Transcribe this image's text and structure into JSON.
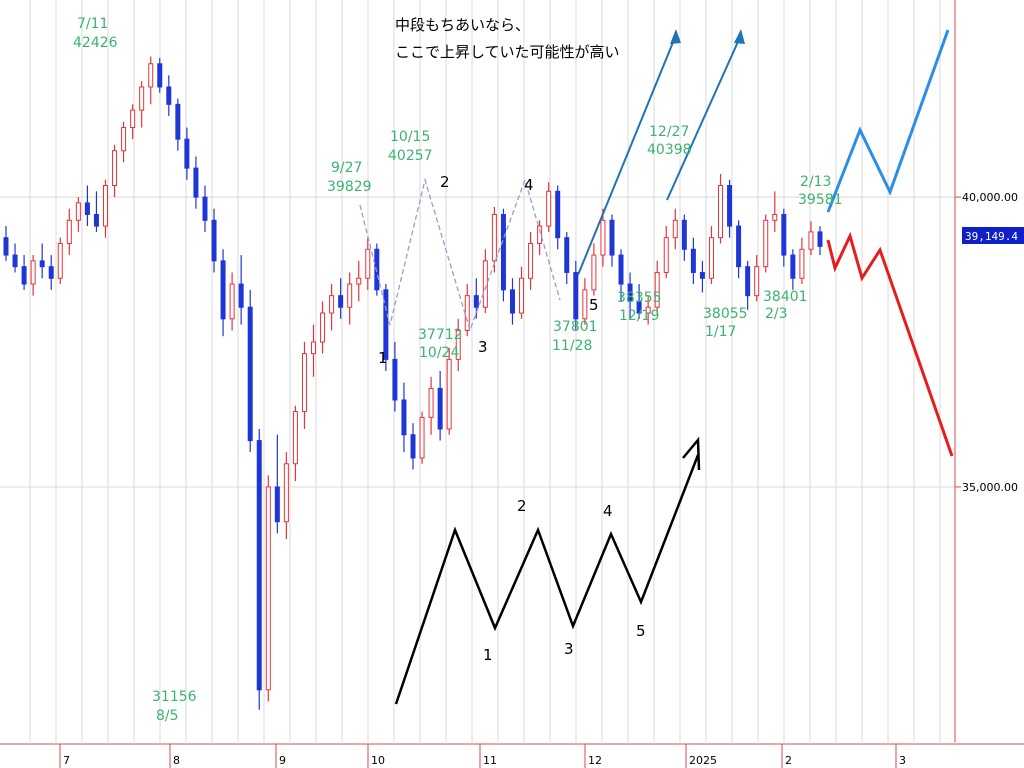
{
  "note": {
    "line1": "中段もちあいなら、",
    "line2": "ここで上昇していた可能性が高い"
  },
  "current_price": "39,149.4",
  "colors": {
    "up": "#e8333a",
    "down": "#1f36d6",
    "grid": "#d9d9d9",
    "axis": "#d84a4a",
    "price_box": "#1020c8",
    "green_label": "#3cb371",
    "forecast_up": "#2b8fe8",
    "forecast_down": "#e81c1c",
    "dashed": "#9b9bc8",
    "arrow": "#1f73b7"
  },
  "chart_data": {
    "type": "candlestick",
    "x_ticks": [
      "7",
      "8",
      "9",
      "10",
      "11",
      "12",
      "2025",
      "2",
      "3"
    ],
    "y_ticks": [
      {
        "value": 40000,
        "label": "40,000.00"
      },
      {
        "value": 35000,
        "label": "35,000.00"
      }
    ],
    "ylim": [
      30600,
      43400
    ],
    "last_close": 39149.4,
    "annotations": [
      {
        "date": "7/11",
        "value": "42426"
      },
      {
        "date": "8/5",
        "value": "31156"
      },
      {
        "date": "9/27",
        "value": "39829"
      },
      {
        "date": "10/15",
        "value": "40257"
      },
      {
        "date": "10/24",
        "value": "37712"
      },
      {
        "date": "11/28",
        "value": "37801"
      },
      {
        "date": "12/19",
        "value": "38355"
      },
      {
        "date": "12/27",
        "value": "40398"
      },
      {
        "date": "1/17",
        "value": "38055"
      },
      {
        "date": "2/3",
        "value": "38401"
      },
      {
        "date": "2/13",
        "value": "39581"
      }
    ],
    "wave_labels": [
      "1",
      "2",
      "3",
      "4",
      "5"
    ],
    "candles": [
      [
        39300,
        39500,
        38900,
        39000
      ],
      [
        39000,
        39200,
        38700,
        38800
      ],
      [
        38800,
        39000,
        38400,
        38500
      ],
      [
        38500,
        39000,
        38300,
        38900
      ],
      [
        38900,
        39200,
        38600,
        38800
      ],
      [
        38800,
        39000,
        38400,
        38600
      ],
      [
        38600,
        39300,
        38500,
        39200
      ],
      [
        39200,
        39800,
        39000,
        39600
      ],
      [
        39600,
        40000,
        39400,
        39900
      ],
      [
        39900,
        40200,
        39500,
        39700
      ],
      [
        39700,
        40100,
        39400,
        39500
      ],
      [
        39500,
        40300,
        39300,
        40200
      ],
      [
        40200,
        40900,
        40000,
        40800
      ],
      [
        40800,
        41300,
        40600,
        41200
      ],
      [
        41200,
        41600,
        41000,
        41500
      ],
      [
        41500,
        42000,
        41200,
        41900
      ],
      [
        41900,
        42426,
        41600,
        42300
      ],
      [
        42300,
        42400,
        41800,
        41900
      ],
      [
        41900,
        42100,
        41400,
        41600
      ],
      [
        41600,
        41700,
        40800,
        41000
      ],
      [
        41000,
        41200,
        40300,
        40500
      ],
      [
        40500,
        40700,
        39800,
        40000
      ],
      [
        40000,
        40200,
        39400,
        39600
      ],
      [
        39600,
        39800,
        38700,
        38900
      ],
      [
        38900,
        39100,
        37600,
        37900
      ],
      [
        37900,
        38700,
        37700,
        38500
      ],
      [
        38500,
        39000,
        37800,
        38100
      ],
      [
        38100,
        38400,
        35600,
        35800
      ],
      [
        35800,
        36000,
        31156,
        31500
      ],
      [
        31500,
        35200,
        31300,
        35000
      ],
      [
        35000,
        35900,
        34200,
        34400
      ],
      [
        34400,
        35600,
        34100,
        35400
      ],
      [
        35400,
        36400,
        35100,
        36300
      ],
      [
        36300,
        37500,
        36000,
        37300
      ],
      [
        37300,
        37800,
        36900,
        37500
      ],
      [
        37500,
        38200,
        37300,
        38000
      ],
      [
        38000,
        38500,
        37700,
        38300
      ],
      [
        38300,
        38600,
        37900,
        38100
      ],
      [
        38100,
        38700,
        37800,
        38500
      ],
      [
        38500,
        38900,
        38200,
        38600
      ],
      [
        38600,
        39300,
        38400,
        39100
      ],
      [
        39100,
        39200,
        38300,
        38400
      ],
      [
        38400,
        38500,
        37000,
        37200
      ],
      [
        37200,
        37500,
        36300,
        36500
      ],
      [
        36500,
        36800,
        35600,
        35900
      ],
      [
        35900,
        36100,
        35300,
        35500
      ],
      [
        35500,
        36300,
        35400,
        36200
      ],
      [
        36200,
        36900,
        35900,
        36700
      ],
      [
        36700,
        37000,
        35800,
        36000
      ],
      [
        36000,
        37400,
        35900,
        37200
      ],
      [
        37200,
        37900,
        37000,
        37700
      ],
      [
        37700,
        38500,
        37600,
        38300
      ],
      [
        38300,
        38600,
        37900,
        38100
      ],
      [
        38100,
        39100,
        38000,
        38900
      ],
      [
        38900,
        39829,
        38700,
        39700
      ],
      [
        39700,
        39800,
        38200,
        38400
      ],
      [
        38400,
        38600,
        37800,
        38000
      ],
      [
        38000,
        38800,
        37900,
        38600
      ],
      [
        38600,
        39400,
        38400,
        39200
      ],
      [
        39200,
        39600,
        39000,
        39500
      ],
      [
        39500,
        40257,
        39400,
        40100
      ],
      [
        40100,
        40200,
        39100,
        39300
      ],
      [
        39300,
        39400,
        38500,
        38700
      ],
      [
        38700,
        38900,
        37712,
        37900
      ],
      [
        37900,
        38600,
        37800,
        38400
      ],
      [
        38400,
        39200,
        38300,
        39000
      ],
      [
        39000,
        39800,
        38800,
        39600
      ],
      [
        39600,
        39700,
        38800,
        39000
      ],
      [
        39000,
        39100,
        38200,
        38500
      ],
      [
        38500,
        38700,
        37900,
        38200
      ],
      [
        38200,
        38500,
        37900,
        38000
      ],
      [
        38000,
        38300,
        37801,
        38100
      ],
      [
        38100,
        38900,
        38000,
        38700
      ],
      [
        38700,
        39500,
        38600,
        39300
      ],
      [
        39300,
        39800,
        39100,
        39600
      ],
      [
        39600,
        39700,
        38900,
        39100
      ],
      [
        39100,
        39300,
        38500,
        38700
      ],
      [
        38700,
        38900,
        38355,
        38600
      ],
      [
        38600,
        39500,
        38500,
        39300
      ],
      [
        39300,
        40398,
        39200,
        40200
      ],
      [
        40200,
        40300,
        39300,
        39500
      ],
      [
        39500,
        39600,
        38600,
        38800
      ],
      [
        38800,
        38900,
        38055,
        38300
      ],
      [
        38300,
        39000,
        38200,
        38800
      ],
      [
        38800,
        39700,
        38700,
        39600
      ],
      [
        39600,
        40100,
        39400,
        39700
      ],
      [
        39700,
        39800,
        38800,
        39000
      ],
      [
        39000,
        39100,
        38401,
        38600
      ],
      [
        38600,
        39300,
        38500,
        39100
      ],
      [
        39100,
        39581,
        39000,
        39400
      ],
      [
        39400,
        39500,
        39000,
        39149.4
      ]
    ]
  }
}
